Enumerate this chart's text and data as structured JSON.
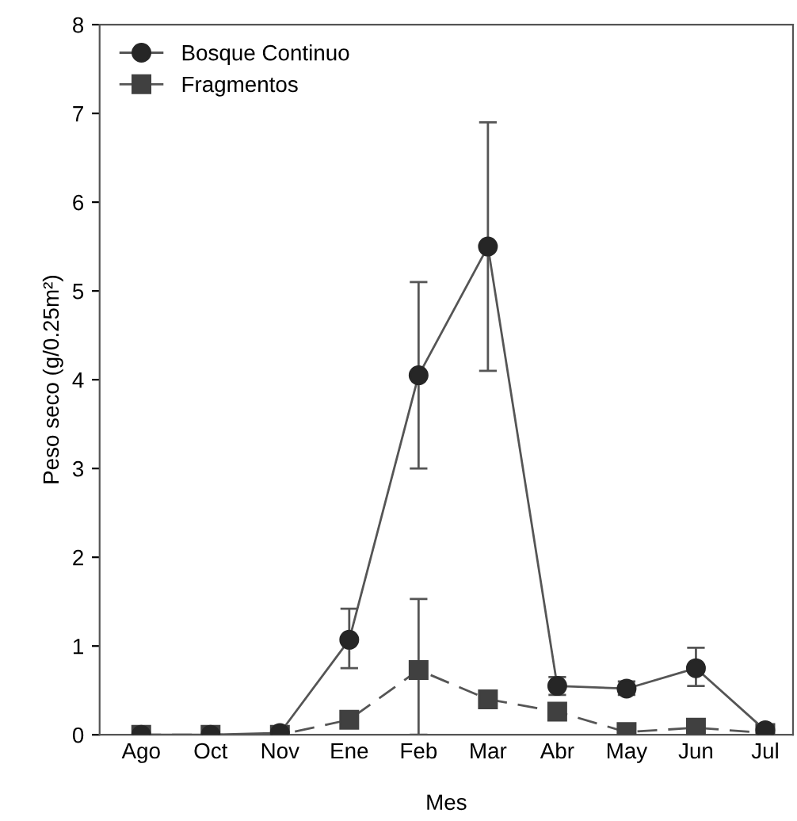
{
  "chart_data": {
    "type": "line",
    "xlabel": "Mes",
    "ylabel": "Peso seco (g/0.25m²)",
    "categories": [
      "Ago",
      "Oct",
      "Nov",
      "Ene",
      "Feb",
      "Mar",
      "Abr",
      "May",
      "Jun",
      "Jul"
    ],
    "series": [
      {
        "name": "Bosque Continuo",
        "color": "#262626",
        "marker": "circle",
        "line_style": "solid",
        "values": [
          0,
          0,
          0.02,
          1.07,
          4.05,
          5.5,
          0.55,
          0.52,
          0.75,
          0.05
        ],
        "errors": [
          null,
          null,
          null,
          [
            0.75,
            1.42
          ],
          [
            3.0,
            5.1
          ],
          [
            4.1,
            6.9
          ],
          [
            0.45,
            0.65
          ],
          [
            0.45,
            0.6
          ],
          [
            0.55,
            0.98
          ],
          null
        ]
      },
      {
        "name": "Fragmentos",
        "color": "#404040",
        "marker": "square",
        "line_style": "dashed",
        "values": [
          0,
          0,
          0,
          0.17,
          0.73,
          0.4,
          0.26,
          0.03,
          0.08,
          0.02
        ],
        "errors": [
          null,
          null,
          null,
          null,
          [
            0,
            1.53
          ],
          null,
          [
            0.2,
            0.32
          ],
          null,
          null,
          null
        ]
      }
    ],
    "ylim": [
      0,
      8
    ],
    "yticks": [
      0,
      1,
      2,
      3,
      4,
      5,
      6,
      7,
      8
    ],
    "grid": false,
    "legend": "top left"
  }
}
